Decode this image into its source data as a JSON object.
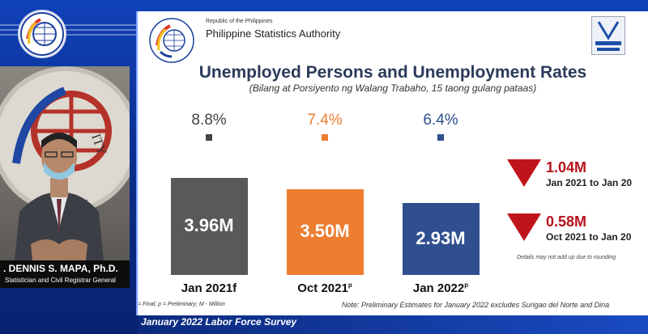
{
  "header": {
    "republic": "Republic of the Philippines",
    "agency": "Philippine Statistics Authority"
  },
  "speaker": {
    "name": ". DENNIS S. MAPA, Ph.D.",
    "role": "Statistician and Civil Registrar General"
  },
  "slide": {
    "title": "Unemployed Persons and Unemployment Rates",
    "subtitle": "(Bilang at Porsiyento ng Walang Trabaho, 15 taong gulang pataas)",
    "rounding_note": "Details may not add up due to rounding",
    "legend_note": "= Final; p = Preliminary; M - Million",
    "preliminary_note": "Note: Preliminary Estimates for January 2022 excludes Surigao del Norte and Dina"
  },
  "banner": {
    "text": "January 2022 Labor Force Survey"
  },
  "changes": [
    {
      "value": "1.04M",
      "range": "Jan 2021 to Jan 20"
    },
    {
      "value": "0.58M",
      "range": "Oct 2021 to Jan 20"
    }
  ],
  "colors": {
    "jan2021": "#595959",
    "oct2021": "#ed7d31",
    "jan2022": "#2f4f8f",
    "decline": "#c0141c",
    "banner": "#0b2a7d"
  },
  "chart_data": {
    "type": "bar",
    "categories": [
      "Jan 2021f",
      "Oct 2021p",
      "Jan 2022p"
    ],
    "category_labels": [
      "Jan 2021f",
      "Oct 2021",
      "Jan 2022"
    ],
    "category_suffix": [
      "",
      "p",
      "p"
    ],
    "values": [
      3.96,
      3.5,
      2.93
    ],
    "value_labels": [
      "3.96M",
      "3.50M",
      "2.93M"
    ],
    "rates": [
      "8.8%",
      "7.4%",
      "6.4%"
    ],
    "ylim": [
      0,
      4.2
    ]
  }
}
